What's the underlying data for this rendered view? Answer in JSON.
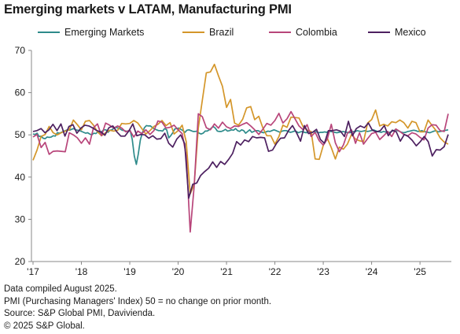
{
  "title": "Emerging markets v LATAM, Manufacturing PMI",
  "footer": {
    "line1": "Data compiled August 2025.",
    "line2": "PMI (Purchasing Managers' Index) 50 = no change on prior month.",
    "line3": "Source: S&P Global PMI, Davivienda.",
    "line4": "© 2025 S&P Global."
  },
  "chart_data": {
    "type": "line",
    "title": "Emerging markets v LATAM, Manufacturing PMI",
    "xlabel": "",
    "ylabel": "",
    "ylim": [
      20,
      70
    ],
    "yticks": [
      20,
      30,
      40,
      50,
      60,
      70
    ],
    "xticks": [
      "'17",
      "'18",
      "'19",
      "'20",
      "'21",
      "'22",
      "'23",
      "'24",
      "'25"
    ],
    "x_start": "2017-01",
    "x_end": "2025-08",
    "grid": false,
    "legend_position": "top",
    "series": [
      {
        "name": "Emerging Markets",
        "color": "#2e8b8b",
        "values": [
          50.2,
          50.1,
          50.4,
          49.6,
          49.7,
          49.2,
          49.1,
          49.5,
          49.4,
          49.5,
          49.8,
          49.7,
          50.5,
          50.4,
          50.6,
          50.8,
          51.0,
          51.2,
          51.1,
          51.3,
          51.5,
          51.2,
          51.1,
          51.0,
          50.8,
          50.6,
          50.4,
          50.5,
          50.2,
          50.0,
          50.4,
          50.3,
          50.7,
          50.5,
          50.8,
          51.2,
          51.2,
          50.6,
          51.1,
          51.2,
          51.6,
          51.8,
          51.6,
          51.4,
          51.1,
          51.0,
          50.9,
          50.8,
          51.0,
          48.9,
          45.0,
          43.0,
          45.5,
          48.8,
          50.5,
          51.7,
          52.2,
          52.1,
          52.1,
          51.7,
          51.4,
          51.2,
          51.0,
          51.0,
          50.9,
          51.5,
          51.2,
          49.3,
          49.8,
          50.5,
          51.4,
          51.5,
          51.6,
          51.3,
          51.0,
          50.6,
          51.1,
          51.2,
          51.0,
          50.8,
          50.8,
          50.9,
          50.4,
          50.2,
          50.4,
          50.9,
          50.9,
          51.2,
          51.6,
          52.0,
          51.6,
          50.9,
          50.8,
          50.8,
          51.0,
          51.3,
          50.9,
          51.0,
          51.2,
          51.1,
          51.5,
          51.0,
          50.8,
          51.2,
          51.0,
          50.4,
          50.8,
          51.2,
          50.6,
          50.8,
          51.0,
          51.0,
          50.8,
          50.6,
          50.5,
          50.7,
          50.9,
          50.8,
          51.0,
          51.2,
          51.0,
          50.8,
          50.6,
          50.9,
          51.0,
          51.0,
          50.8,
          50.6,
          50.7,
          50.9,
          50.8,
          50.5,
          50.7,
          50.8,
          50.6,
          50.5,
          50.8,
          50.7,
          50.6,
          50.8,
          50.7,
          50.5,
          50.6,
          50.6,
          50.7,
          50.6,
          50.9,
          50.8,
          50.7,
          50.6,
          50.5,
          50.6,
          50.7,
          50.8,
          50.7,
          50.6,
          50.5,
          50.6,
          50.8,
          50.7,
          51.0,
          50.9,
          50.8,
          50.9,
          51.0,
          50.8,
          50.9,
          51.0,
          51.2,
          51.0,
          50.8,
          50.7,
          50.6,
          50.8,
          50.7,
          50.4,
          50.6,
          50.8,
          51.0,
          51.2,
          51.0,
          50.8,
          50.6,
          50.5,
          50.6,
          50.8,
          50.9,
          51.0,
          51.1,
          51.0,
          50.8,
          50.9,
          51.0,
          50.8,
          50.7,
          50.6,
          50.5,
          50.7,
          50.9,
          51.0,
          50.7,
          50.8,
          50.9,
          51.0,
          51.1,
          51.2
        ]
      },
      {
        "name": "Brazil",
        "color": "#d4962a",
        "values": [
          44.0,
          46.4,
          49.6,
          50.1,
          52.0,
          50.5,
          50.0,
          50.5,
          50.9,
          51.2,
          53.5,
          52.4,
          51.2,
          53.2,
          53.4,
          52.3,
          50.7,
          49.8,
          50.5,
          51.1,
          50.9,
          51.1,
          52.7,
          52.6,
          52.7,
          53.4,
          52.8,
          51.5,
          50.2,
          51.0,
          52.0,
          52.5,
          53.4,
          52.2,
          52.9,
          50.2,
          51.0,
          52.3,
          48.4,
          36.0,
          38.3,
          51.6,
          58.2,
          64.7,
          64.9,
          66.7,
          64.0,
          61.5,
          56.5,
          58.4,
          52.8,
          52.3,
          53.7,
          56.4,
          56.7,
          53.6,
          54.4,
          51.7,
          49.8,
          49.8,
          47.8,
          49.6,
          52.3,
          51.8,
          54.2,
          54.1,
          54.0,
          51.9,
          51.1,
          50.8,
          44.3,
          44.2,
          47.5,
          49.2,
          47.0,
          44.3,
          47.1,
          46.6,
          47.8,
          50.1,
          49.0,
          48.6,
          48.4,
          52.8,
          53.6,
          55.9,
          52.1,
          52.5,
          52.1,
          53.1,
          52.9,
          53.5,
          52.9,
          51.6,
          53.2,
          52.9,
          50.7,
          50.7,
          53.5,
          52.2,
          51.0,
          49.3,
          48.3,
          47.8
        ],
        "_note_unused": null
      },
      {
        "name": "Colombia",
        "color": "#b8457a",
        "values": [
          49.5,
          50.1,
          47.0,
          48.2,
          45.4,
          46.1,
          46.2,
          46.1,
          46.0,
          50.5,
          50.0,
          49.3,
          48.0,
          49.3,
          47.8,
          51.7,
          52.6,
          49.8,
          52.8,
          52.3,
          51.6,
          52.1,
          51.6,
          50.7,
          51.1,
          49.5,
          50.9,
          50.3,
          51.2,
          50.1,
          51.0,
          53.3,
          53.0,
          51.6,
          51.8,
          52.3,
          51.2,
          50.3,
          45.1,
          27.0,
          38.0,
          55.0,
          54.3,
          51.7,
          51.2,
          52.6,
          51.6,
          53.0,
          51.9,
          51.5,
          52.1,
          52.0,
          52.5,
          52.9,
          52.1,
          51.2,
          50.1,
          51.3,
          52.7,
          52.3,
          53.4,
          55.1,
          52.8,
          53.8,
          55.5,
          53.8,
          52.1,
          51.2,
          52.4,
          49.6,
          50.6,
          48.6,
          47.6,
          49.0,
          52.5,
          48.1,
          46.0,
          47.6,
          50.4,
          51.2,
          48.0,
          50.5,
          47.8,
          49.1,
          50.3,
          50.6,
          48.9,
          49.8,
          50.8,
          49.6,
          51.4,
          50.8,
          50.1,
          49.8,
          50.5,
          50.2,
          49.4,
          48.8,
          51.6,
          52.4,
          52.3,
          51.0,
          50.8,
          55.0
        ]
      },
      {
        "name": "Mexico",
        "color": "#4d2060",
        "values": [
          50.8,
          51.0,
          51.5,
          50.5,
          51.2,
          52.5,
          51.0,
          52.6,
          49.7,
          52.0,
          52.4,
          50.4,
          51.6,
          52.3,
          52.1,
          51.6,
          51.0,
          50.7,
          49.9,
          51.7,
          52.1,
          50.7,
          49.7,
          49.7,
          50.9,
          52.6,
          49.8,
          50.1,
          50.0,
          49.2,
          49.8,
          49.0,
          49.1,
          50.4,
          48.0,
          47.1,
          49.0,
          50.0,
          47.9,
          35.0,
          38.3,
          38.6,
          40.4,
          41.3,
          42.1,
          43.6,
          42.3,
          43.7,
          43.0,
          44.2,
          45.6,
          48.4,
          47.6,
          48.8,
          48.4,
          49.6,
          49.3,
          49.4,
          49.3,
          46.1,
          46.4,
          48.0,
          49.2,
          49.3,
          51.0,
          52.2,
          50.5,
          48.5,
          52.2,
          50.3,
          50.6,
          51.3,
          48.9,
          48.0,
          51.0,
          51.0,
          51.2,
          50.9,
          49.6,
          53.2,
          49.8,
          51.5,
          52.1,
          51.7,
          52.8,
          51.1,
          50.7,
          51.0,
          52.2,
          49.8,
          51.1,
          50.7,
          48.5,
          50.1,
          49.6,
          48.7,
          47.4,
          48.4,
          49.6,
          48.4,
          45.0,
          46.5,
          46.4,
          47.2,
          50.1
        ]
      }
    ]
  }
}
